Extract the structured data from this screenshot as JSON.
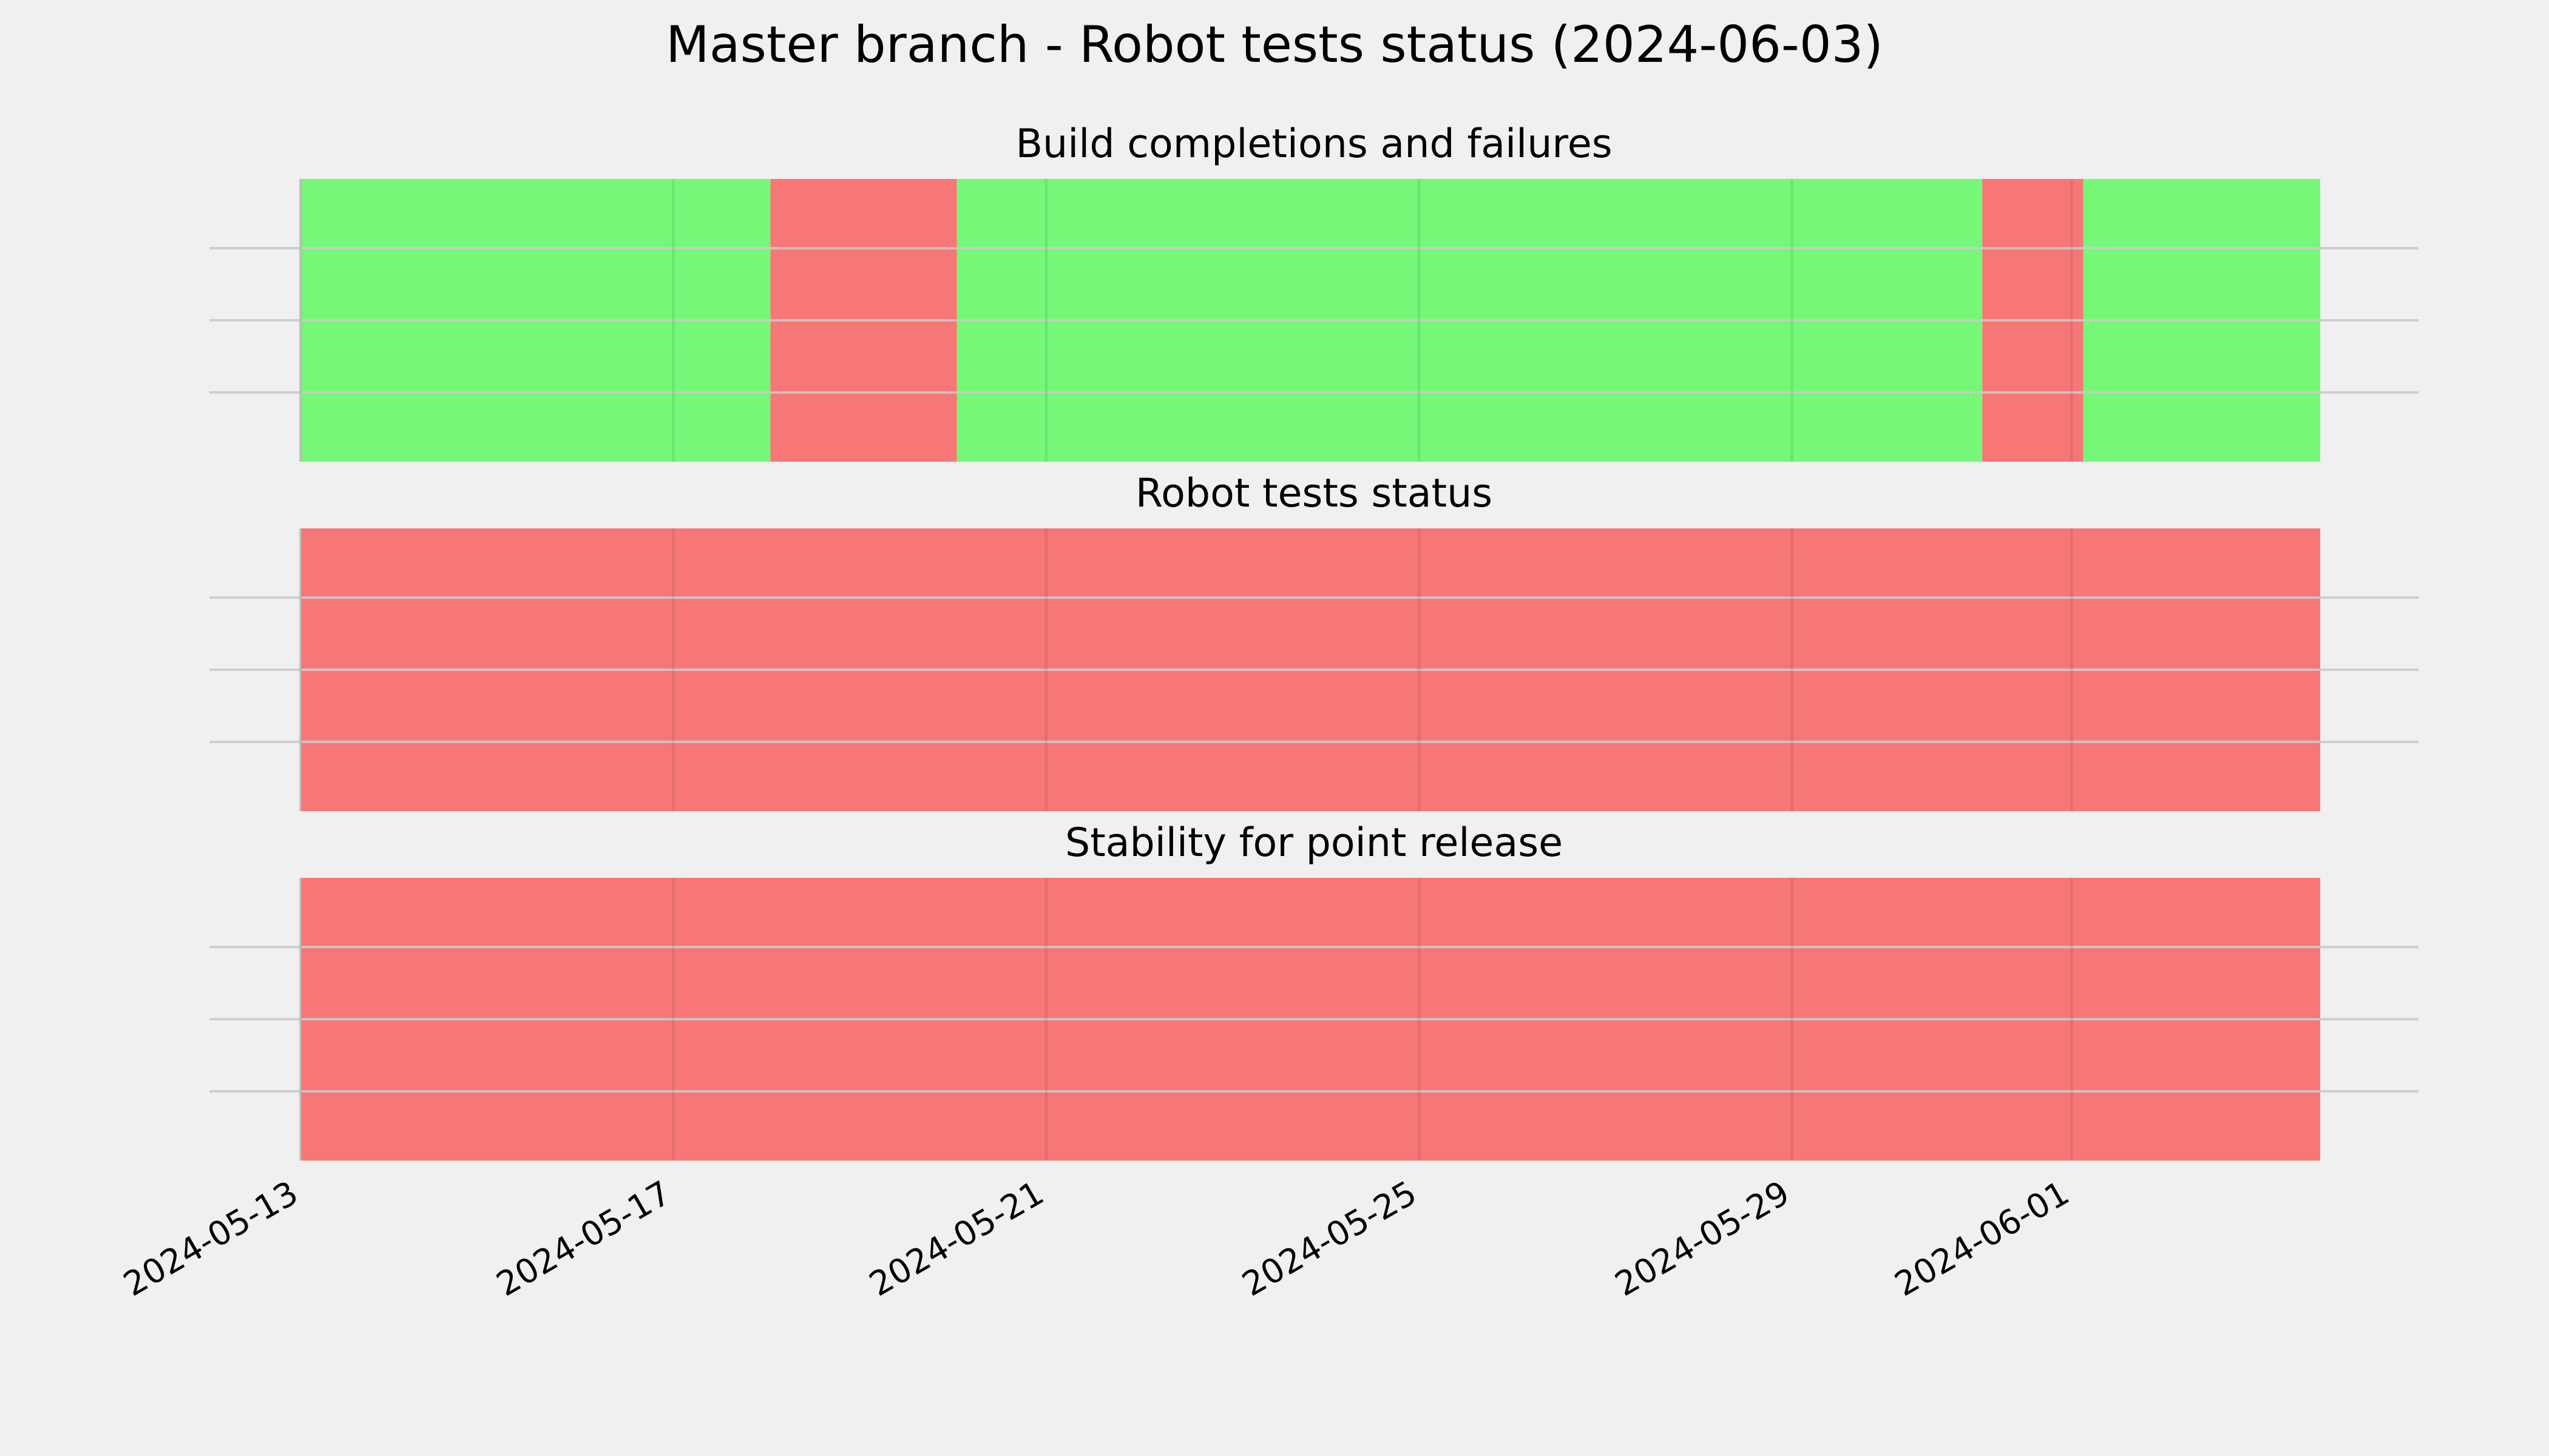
{
  "chart_data": {
    "type": "timeline",
    "title": "Master branch - Robot tests status (2024-06-03)",
    "x_range": [
      "2024-05-13",
      "2024-06-03T16:00"
    ],
    "x_ticks": [
      "2024-05-13",
      "2024-05-17",
      "2024-05-21",
      "2024-05-25",
      "2024-05-29",
      "2024-06-01"
    ],
    "grid": true,
    "colors": {
      "pass": "#77f777",
      "fail": "#f77777",
      "background": "#f0f0f0",
      "grid": "#cbcbcb"
    },
    "panels": [
      {
        "title": "Build completions and failures",
        "segments": [
          {
            "start": "2024-05-13",
            "end": "2024-05-18T01:00",
            "status": "pass"
          },
          {
            "start": "2024-05-18T01:00",
            "end": "2024-05-20T01:00",
            "status": "fail"
          },
          {
            "start": "2024-05-20T01:00",
            "end": "2024-05-31T01:00",
            "status": "pass"
          },
          {
            "start": "2024-05-31T01:00",
            "end": "2024-06-01T03:00",
            "status": "fail"
          },
          {
            "start": "2024-06-01T03:00",
            "end": "2024-06-03T16:00",
            "status": "pass"
          }
        ]
      },
      {
        "title": "Robot tests status",
        "segments": [
          {
            "start": "2024-05-13",
            "end": "2024-06-03T16:00",
            "status": "fail"
          }
        ]
      },
      {
        "title": "Stability for point release",
        "segments": [
          {
            "start": "2024-05-13",
            "end": "2024-06-03T16:00",
            "status": "fail"
          }
        ]
      }
    ]
  }
}
